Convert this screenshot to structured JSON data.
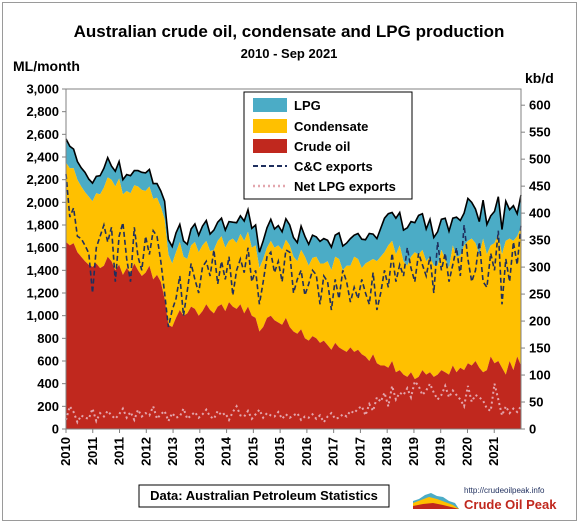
{
  "chart_data": {
    "type": "area",
    "title": "Australian crude oil, condensate and LPG production",
    "subtitle": "2010 - Sep 2021",
    "ylabel_left": "ML/month",
    "ylabel_right": "kb/d",
    "ylim_left": [
      0,
      3000
    ],
    "ylim_right": [
      0,
      630
    ],
    "left_ticks": [
      "0",
      "200",
      "400",
      "600",
      "800",
      "1,000",
      "1,200",
      "1,400",
      "1,600",
      "1,800",
      "2,000",
      "2,200",
      "2,400",
      "2,600",
      "2,800",
      "3,000"
    ],
    "right_ticks": [
      "0",
      "50",
      "100",
      "150",
      "200",
      "250",
      "300",
      "350",
      "400",
      "450",
      "500",
      "550",
      "600"
    ],
    "x_ticks": [
      "2010",
      "2011",
      "2011",
      "2012",
      "2013",
      "2013",
      "2014",
      "2015",
      "2015",
      "2016",
      "2017",
      "2017",
      "2018",
      "2019",
      "2019",
      "2020",
      "2021"
    ],
    "legend_position": "top-center",
    "grid": false,
    "source_note": "Data: Australian Petroleum Statistics",
    "logo_url": "http://crudeoilpeak.info",
    "logo_name": "Crude Oil Peak",
    "colors": {
      "lpg": "#4bacc6",
      "condensate": "#ffc000",
      "crude": "#c0281e",
      "cc_exports": "#1f2f5e",
      "lpg_exports": "#e3a6ad"
    },
    "series": [
      {
        "name": "LPG",
        "kind": "area",
        "annual_values": [
          150,
          145,
          140,
          130,
          150,
          160,
          190,
          200,
          230,
          330,
          290,
          280
        ],
        "monthly_values": [
          210,
          195,
          170,
          160,
          165,
          175,
          155,
          160,
          150,
          165,
          170,
          175,
          120,
          135,
          150,
          130,
          145,
          155,
          130,
          140,
          155,
          160,
          150,
          135,
          125,
          140,
          160,
          130,
          150,
          170,
          155,
          140,
          130,
          145,
          160,
          150,
          170,
          180,
          150,
          175,
          165,
          160,
          155,
          170,
          145,
          180,
          160,
          175,
          195,
          170,
          180,
          140,
          160,
          175,
          190,
          165,
          175,
          160,
          185,
          180,
          170,
          165,
          210,
          180,
          190,
          200,
          175,
          195,
          220,
          185,
          205,
          190,
          230,
          215,
          200,
          240,
          190,
          225,
          255,
          210,
          245,
          220,
          200,
          250,
          300,
          280,
          250,
          320,
          290,
          275,
          335,
          310,
          260,
          345,
          320,
          285,
          330,
          250,
          300,
          270,
          360,
          325,
          240,
          350,
          310,
          285,
          375,
          320,
          300,
          290,
          340,
          265,
          260,
          280,
          330,
          220,
          350,
          255,
          310,
          200,
          285
        ]
      },
      {
        "name": "Condensate",
        "kind": "area",
        "annual_values": [
          650,
          700,
          620,
          560,
          600,
          650,
          680,
          700,
          720,
          1000,
          980,
          1050
        ],
        "monthly_values": [
          700,
          680,
          660,
          640,
          620,
          610,
          600,
          580,
          620,
          650,
          690,
          700,
          720,
          740,
          760,
          710,
          680,
          700,
          690,
          740,
          760,
          720,
          700,
          710,
          680,
          660,
          700,
          620,
          560,
          580,
          600,
          520,
          480,
          540,
          590,
          560,
          580,
          560,
          520,
          560,
          580,
          600,
          560,
          540,
          600,
          580,
          620,
          640,
          660,
          600,
          640,
          560,
          600,
          620,
          660,
          640,
          680,
          660,
          690,
          720,
          660,
          640,
          700,
          720,
          660,
          690,
          720,
          700,
          680,
          740,
          700,
          760,
          780,
          700,
          760,
          720,
          840,
          800,
          760,
          820,
          880,
          840,
          900,
          960,
          1000,
          1080,
          1060,
          1040,
          1100,
          1000,
          980,
          1020,
          1120,
          1080,
          1060,
          1000,
          1020,
          980,
          960,
          1060,
          1000,
          940,
          1060,
          1020,
          990,
          1100,
          1080,
          1120,
          1040,
          1000,
          1180,
          1020,
          980,
          1060,
          1120,
          1000,
          1180,
          1080,
          1140,
          1060,
          1220,
          1040
        ]
      },
      {
        "name": "Crude oil",
        "kind": "area",
        "annual_values": [
          1600,
          1420,
          1310,
          1060,
          1050,
          1000,
          820,
          720,
          600,
          480,
          520,
          560
        ],
        "monthly_values": [
          1650,
          1620,
          1640,
          1560,
          1520,
          1480,
          1450,
          1430,
          1460,
          1420,
          1440,
          1520,
          1480,
          1400,
          1450,
          1360,
          1420,
          1380,
          1460,
          1400,
          1350,
          1380,
          1440,
          1320,
          1360,
          1300,
          1150,
          920,
          900,
          980,
          1050,
          1000,
          1020,
          1080,
          1060,
          1000,
          1040,
          1100,
          1050,
          1020,
          1080,
          1100,
          1040,
          1120,
          1080,
          1060,
          1100,
          1020,
          1080,
          1000,
          980,
          860,
          900,
          980,
          1000,
          960,
          940,
          920,
          980,
          900,
          860,
          840,
          880,
          800,
          780,
          820,
          800,
          760,
          780,
          740,
          700,
          760,
          720,
          700,
          680,
          720,
          680,
          700,
          660,
          640,
          600,
          660,
          580,
          560,
          560,
          540,
          600,
          500,
          520,
          480,
          460,
          500,
          440,
          460,
          520,
          480,
          500,
          460,
          480,
          520,
          500,
          480,
          560,
          500,
          540,
          520,
          580,
          560,
          600,
          540,
          500,
          520,
          640,
          580,
          600,
          540,
          480,
          600,
          520,
          640,
          560,
          620
        ]
      },
      {
        "name": "C&C exports",
        "kind": "line",
        "annual_values": [
          1880,
          1640,
          1540,
          1220,
          1400,
          1380,
          1320,
          1150,
          1280,
          1450,
          1350,
          1450
        ],
        "monthly_values": [
          2250,
          1870,
          1950,
          1700,
          1680,
          1620,
          1550,
          1200,
          1600,
          1700,
          1800,
          1650,
          1780,
          1300,
          1700,
          1820,
          1500,
          1300,
          1780,
          1520,
          1400,
          1700,
          1540,
          1750,
          1700,
          1480,
          1200,
          900,
          1050,
          1150,
          1350,
          1000,
          1220,
          1460,
          1320,
          1200,
          1430,
          1480,
          1350,
          1580,
          1280,
          1480,
          1320,
          1520,
          1180,
          1400,
          1500,
          1380,
          1600,
          1300,
          1400,
          1100,
          1300,
          1520,
          1560,
          1380,
          1480,
          1300,
          1580,
          1560,
          1200,
          1320,
          1400,
          1180,
          1280,
          1400,
          1360,
          1100,
          1350,
          1300,
          1050,
          1320,
          1150,
          1400,
          1300,
          1120,
          1250,
          1150,
          1320,
          1200,
          1100,
          1380,
          1050,
          1200,
          1400,
          1250,
          1550,
          1300,
          1450,
          1350,
          1600,
          1420,
          1300,
          1550,
          1450,
          1350,
          1520,
          1200,
          1650,
          1400,
          1550,
          1300,
          1450,
          1600,
          1350,
          1800,
          1500,
          1300,
          1400,
          1650,
          1300,
          1250,
          1550,
          1400,
          1750,
          1100,
          1500,
          1300,
          1650,
          1450,
          1800
        ]
      },
      {
        "name": "Net LPG exports",
        "kind": "line",
        "annual_values": [
          120,
          130,
          110,
          100,
          130,
          120,
          100,
          90,
          150,
          350,
          300,
          200
        ],
        "monthly_values": [
          80,
          200,
          150,
          60,
          120,
          100,
          90,
          180,
          70,
          140,
          110,
          160,
          120,
          90,
          130,
          180,
          100,
          150,
          80,
          170,
          110,
          140,
          120,
          200,
          90,
          130,
          160,
          70,
          140,
          100,
          110,
          180,
          90,
          120,
          150,
          100,
          130,
          170,
          110,
          90,
          160,
          120,
          140,
          80,
          150,
          200,
          120,
          110,
          160,
          90,
          130,
          170,
          100,
          140,
          120,
          110,
          150,
          90,
          130,
          100,
          120,
          140,
          80,
          110,
          100,
          130,
          90,
          120,
          60,
          110,
          140,
          90,
          100,
          130,
          110,
          160,
          140,
          180,
          200,
          120,
          220,
          160,
          280,
          240,
          320,
          200,
          380,
          260,
          320,
          300,
          360,
          280,
          420,
          380,
          300,
          340,
          400,
          320,
          260,
          300,
          380,
          280,
          340,
          300,
          260,
          200,
          380,
          240,
          300,
          280,
          250,
          180,
          160,
          400,
          260,
          120,
          200,
          140,
          180,
          150,
          200
        ]
      }
    ]
  }
}
